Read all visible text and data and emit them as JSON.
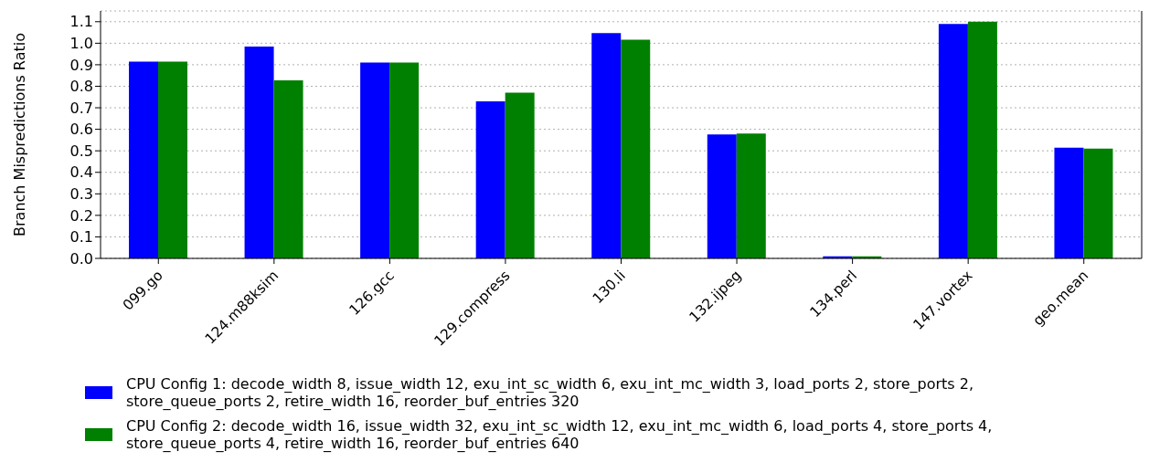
{
  "chart_data": {
    "type": "bar",
    "ylabel": "Branch Mispredictions Ratio",
    "categories": [
      "099.go",
      "124.m88ksim",
      "126.gcc",
      "129.compress",
      "130.li",
      "132.ijpeg",
      "134.perl",
      "147.vortex",
      "geo.mean"
    ],
    "series": [
      {
        "name": "CPU Config 1: decode_width 8, issue_width 12, exu_int_sc_width 6, exu_int_mc_width 3, load_ports 2, store_ports 2, store_queue_ports 2, retire_width 16, reorder_buf_entries 320",
        "color": "#0000ff",
        "values": [
          0.915,
          0.985,
          0.91,
          0.73,
          1.047,
          0.576,
          0.01,
          1.09,
          0.515
        ]
      },
      {
        "name": "CPU Config 2: decode_width 16, issue_width 32, exu_int_sc_width 12, exu_int_mc_width 6, load_ports 4, store_ports 4, store_queue_ports 4, retire_width 16, reorder_buf_entries 640",
        "color": "#008000",
        "values": [
          0.915,
          0.827,
          0.91,
          0.77,
          1.016,
          0.58,
          0.01,
          1.1,
          0.51
        ]
      }
    ],
    "ylim": [
      0,
      1.15
    ],
    "yticks": [
      {
        "value": 0,
        "label": "0.0"
      },
      0.1,
      0.2,
      0.3,
      0.4,
      0.5,
      0.6,
      0.7,
      0.8,
      0.9,
      {
        "value": 1,
        "label": "1.0"
      },
      1.1
    ],
    "grid": "y",
    "legend": "bottom"
  }
}
